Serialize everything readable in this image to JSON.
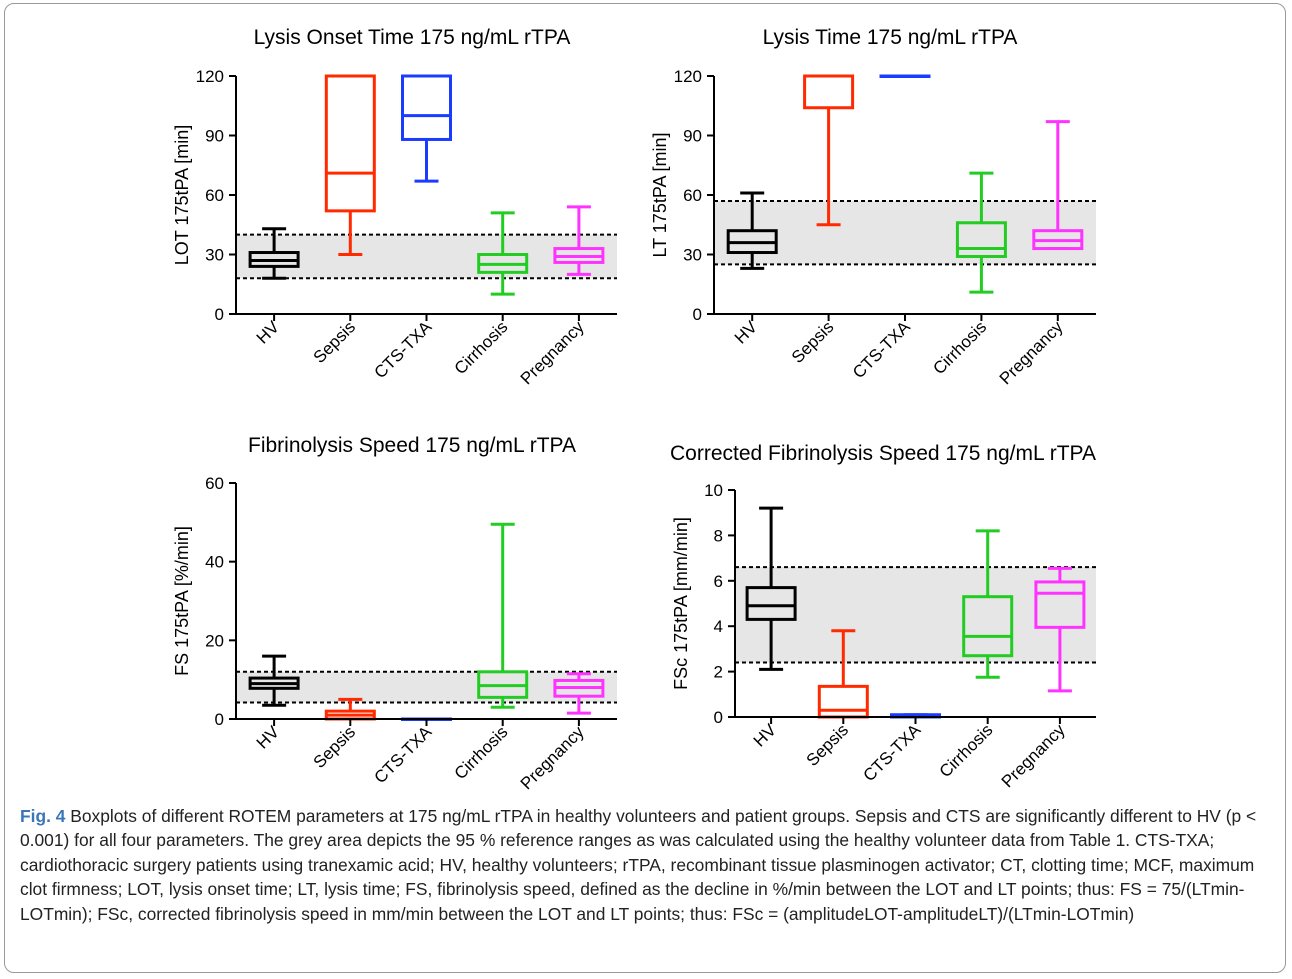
{
  "figure": {
    "fig_label": "Fig. 4",
    "caption_text": "Boxplots of different ROTEM parameters at 175 ng/mL rTPA in healthy volunteers and patient groups. Sepsis and CTS are significantly different to HV (p < 0.001) for all four parameters. The grey area depicts the 95 % reference ranges as was calculated using the healthy volunteer data from Table 1. CTS-TXA; cardiothoracic surgery patients using tranexamic acid; HV, healthy volunteers; rTPA, recombinant tissue plasminogen activator; CT, clotting time; MCF, maximum clot firmness; LOT, lysis onset time; LT, lysis time; FS, fibrinolysis speed, defined as the decline in %/min between the LOT and LT points; thus: FS = 75/(LTmin-LOTmin); FSc, corrected fibrinolysis speed in mm/min between the LOT and LT points; thus: FSc = (amplitudeLOT-amplitudeLT)/(LTmin-LOTmin)"
  },
  "chart_data": [
    {
      "type": "boxplot",
      "title": "Lysis Onset Time 175 ng/mL rTPA",
      "ylabel": "LOT 175tPA [min]",
      "ylim": [
        0,
        120
      ],
      "yticks": [
        0,
        30,
        60,
        90,
        120
      ],
      "categories": [
        "HV",
        "Sepsis",
        "CTS-TXA",
        "Cirrhosis",
        "Pregnancy"
      ],
      "reference_range": [
        18,
        40
      ],
      "series": [
        {
          "color": "#000000",
          "min": 18,
          "q1": 24,
          "median": 27,
          "q3": 31,
          "max": 43
        },
        {
          "color": "#ff2a00",
          "min": 30,
          "q1": 52,
          "median": 71,
          "q3": 120,
          "max": 120
        },
        {
          "color": "#1a3cff",
          "min": 67,
          "q1": 88,
          "median": 100,
          "q3": 120,
          "max": 120
        },
        {
          "color": "#22cc22",
          "min": 10,
          "q1": 21,
          "median": 25,
          "q3": 30,
          "max": 51
        },
        {
          "color": "#ff33ff",
          "min": 20,
          "q1": 26,
          "median": 29,
          "q3": 33,
          "max": 54
        }
      ]
    },
    {
      "type": "boxplot",
      "title": "Lysis Time 175 ng/mL rTPA",
      "ylabel": "LT 175tPA [min]",
      "ylim": [
        0,
        120
      ],
      "yticks": [
        0,
        30,
        60,
        90,
        120
      ],
      "categories": [
        "HV",
        "Sepsis",
        "CTS-TXA",
        "Cirrhosis",
        "Pregnancy"
      ],
      "reference_range": [
        25,
        57
      ],
      "series": [
        {
          "color": "#000000",
          "min": 23,
          "q1": 31,
          "median": 36,
          "q3": 42,
          "max": 61
        },
        {
          "color": "#ff2a00",
          "min": 45,
          "q1": 104,
          "median": 120,
          "q3": 120,
          "max": 120
        },
        {
          "color": "#1a3cff",
          "min": 120,
          "q1": 120,
          "median": 120,
          "q3": 120,
          "max": 120
        },
        {
          "color": "#22cc22",
          "min": 11,
          "q1": 29,
          "median": 33,
          "q3": 46,
          "max": 71
        },
        {
          "color": "#ff33ff",
          "min": 33,
          "q1": 33,
          "median": 37,
          "q3": 42,
          "max": 97
        }
      ]
    },
    {
      "type": "boxplot",
      "title": "Fibrinolysis Speed 175 ng/mL rTPA",
      "ylabel": "FS 175tPA [%/min]",
      "ylim": [
        0,
        60
      ],
      "yticks": [
        0,
        20,
        40,
        60
      ],
      "categories": [
        "HV",
        "Sepsis",
        "CTS-TXA",
        "Cirrhosis",
        "Pregnancy"
      ],
      "reference_range": [
        4.2,
        12
      ],
      "series": [
        {
          "color": "#000000",
          "min": 3.5,
          "q1": 7.8,
          "median": 9,
          "q3": 10.4,
          "max": 16
        },
        {
          "color": "#ff2a00",
          "min": 0,
          "q1": 0,
          "median": 1,
          "q3": 2,
          "max": 5
        },
        {
          "color": "#1a3cff",
          "min": 0,
          "q1": 0,
          "median": 0,
          "q3": 0,
          "max": 0
        },
        {
          "color": "#22cc22",
          "min": 3,
          "q1": 5.5,
          "median": 8.5,
          "q3": 12,
          "max": 49.5
        },
        {
          "color": "#ff33ff",
          "min": 1.5,
          "q1": 5.8,
          "median": 8,
          "q3": 9.8,
          "max": 11.5
        }
      ]
    },
    {
      "type": "boxplot",
      "title": "Corrected Fibrinolysis Speed 175 ng/mL rTPA",
      "ylabel": "FSc 175tPA [mm/min]",
      "ylim": [
        0,
        10
      ],
      "yticks": [
        0,
        2,
        4,
        6,
        8,
        10
      ],
      "categories": [
        "HV",
        "Sepsis",
        "CTS-TXA",
        "Cirrhosis",
        "Pregnancy"
      ],
      "reference_range": [
        2.4,
        6.6
      ],
      "series": [
        {
          "color": "#000000",
          "min": 2.1,
          "q1": 4.3,
          "median": 4.9,
          "q3": 5.7,
          "max": 9.2
        },
        {
          "color": "#ff2a00",
          "min": 0,
          "q1": 0,
          "median": 0.3,
          "q3": 1.35,
          "max": 3.8
        },
        {
          "color": "#1a3cff",
          "min": 0,
          "q1": 0,
          "median": 0.05,
          "q3": 0.1,
          "max": 0.1
        },
        {
          "color": "#22cc22",
          "min": 1.75,
          "q1": 2.7,
          "median": 3.55,
          "q3": 5.3,
          "max": 8.2
        },
        {
          "color": "#ff33ff",
          "min": 1.15,
          "q1": 3.95,
          "median": 5.45,
          "q3": 5.95,
          "max": 6.55
        }
      ]
    }
  ]
}
